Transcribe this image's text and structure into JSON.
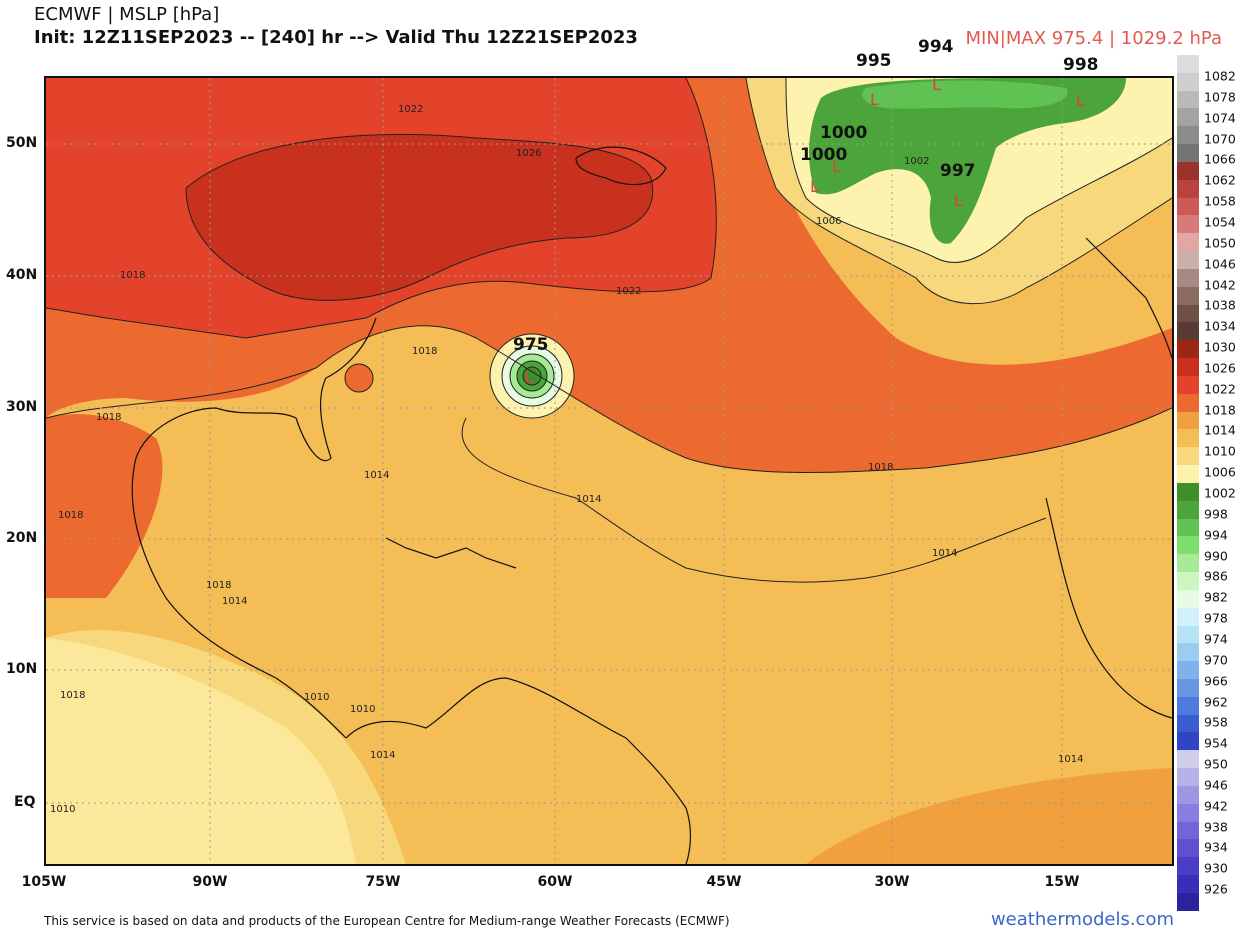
{
  "header": {
    "line1": "ECMWF | MSLP [hPa]",
    "line2": "Init: 12Z11SEP2023 -- [240] hr --> Valid Thu 12Z21SEP2023",
    "minmax": "MIN|MAX 975.4 | 1029.2 hPa"
  },
  "axes": {
    "lat_labels": [
      "50N",
      "40N",
      "30N",
      "20N",
      "10N",
      "EQ"
    ],
    "lon_labels": [
      "105W",
      "90W",
      "75W",
      "60W",
      "45W",
      "30W",
      "15W"
    ]
  },
  "colorbar": {
    "labels": [
      "1082",
      "1078",
      "1074",
      "1070",
      "1066",
      "1062",
      "1058",
      "1054",
      "1050",
      "1046",
      "1042",
      "1038",
      "1034",
      "1030",
      "1026",
      "1022",
      "1018",
      "1014",
      "1010",
      "1006",
      "1002",
      "998",
      "994",
      "990",
      "986",
      "982",
      "978",
      "974",
      "970",
      "966",
      "962",
      "958",
      "954",
      "950",
      "946",
      "942",
      "938",
      "934",
      "930",
      "926"
    ],
    "colors": [
      "#dcdcdc",
      "#cfcfcf",
      "#b9b9b9",
      "#a3a3a3",
      "#8c8c8c",
      "#747474",
      "#9a342b",
      "#b8433e",
      "#cc5a59",
      "#d97a7a",
      "#e2a7a3",
      "#c9b1aa",
      "#a68a82",
      "#8b6b61",
      "#6e5047",
      "#5a3b33",
      "#9d2715",
      "#c8311d",
      "#e2432a",
      "#ec6a30",
      "#f0a03c",
      "#f4bd56",
      "#f8d87d",
      "#fdf3ae",
      "#3e8f2b",
      "#4ca53b",
      "#61c254",
      "#7fdd6e",
      "#a6ea97",
      "#ccf5c0",
      "#e7fbe2",
      "#d2f0fb",
      "#b7e3f7",
      "#9ccdf0",
      "#7fb2ea",
      "#6796e3",
      "#4f79db",
      "#3c5dd1",
      "#3045c6",
      "#cfcde8",
      "#b6b1e6",
      "#9f97e4",
      "#8a7fe0",
      "#7366d9",
      "#5f51d1",
      "#4c3dc6",
      "#3a2eb8",
      "#2a229f"
    ]
  },
  "map": {
    "low_labels": [
      {
        "label": "975",
        "name": "low-975"
      },
      {
        "label": "995",
        "name": "low-995"
      },
      {
        "label": "994",
        "name": "low-994"
      },
      {
        "label": "998",
        "name": "low-998"
      },
      {
        "label": "1000",
        "name": "low-1000a"
      },
      {
        "label": "1000",
        "name": "low-1000b"
      },
      {
        "label": "997",
        "name": "low-997"
      }
    ],
    "contour_labels": [
      "1022",
      "1026",
      "1018",
      "1022",
      "1018",
      "1018",
      "1014",
      "1014",
      "1018",
      "1014",
      "1014",
      "1010",
      "1010",
      "1014",
      "1014",
      "1018",
      "1018",
      "1018",
      "1010",
      "1006",
      "1002"
    ],
    "low_marker": "L"
  },
  "footer": {
    "credit": "This service is based on data and products of the European Centre for Medium-range Weather Forecasts (ECMWF)",
    "brand": "weathermodels.com"
  }
}
